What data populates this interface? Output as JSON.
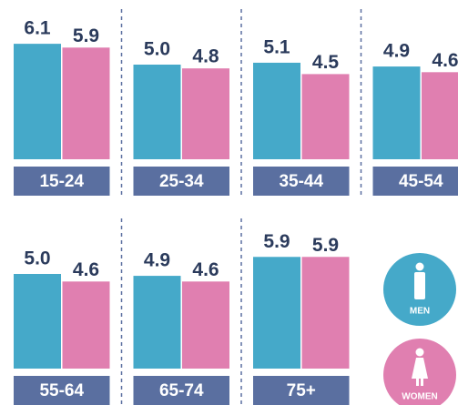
{
  "chart_data": {
    "type": "bar",
    "categories": [
      "15-24",
      "25-34",
      "35-44",
      "45-54",
      "55-64",
      "65-74",
      "75+"
    ],
    "series": [
      {
        "name": "MEN",
        "color": "#45a9c9",
        "values": [
          6.1,
          5.0,
          5.1,
          4.9,
          5.0,
          4.9,
          5.9
        ],
        "value_labels": [
          "6.1",
          "5.0",
          "5.1",
          "4.9",
          "5.0",
          "4.9",
          "5.9"
        ]
      },
      {
        "name": "WOMEN",
        "color": "#e07fb0",
        "values": [
          5.9,
          4.8,
          4.5,
          4.6,
          4.6,
          4.6,
          5.9
        ],
        "value_labels": [
          "5.9",
          "4.8",
          "4.5",
          "4.6",
          "4.6",
          "4.6",
          "5.9"
        ]
      }
    ],
    "label_color": "#5a6fa0"
  }
}
